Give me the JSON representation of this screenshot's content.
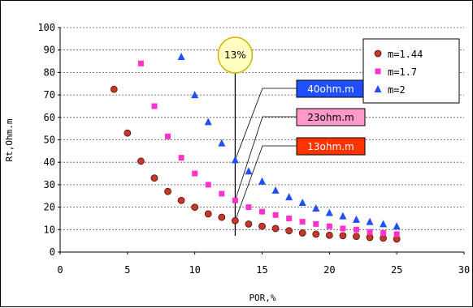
{
  "chart_data": {
    "type": "scatter",
    "xlabel": "POR,%",
    "ylabel": "Rt,Ohm.m",
    "xlim": [
      0,
      30
    ],
    "ylim": [
      0,
      100
    ],
    "xticks": [
      0,
      5,
      10,
      15,
      20,
      25,
      30
    ],
    "yticks": [
      0,
      10,
      20,
      30,
      40,
      50,
      60,
      70,
      80,
      90,
      100
    ],
    "grid": "horizontal dashed",
    "legend_position": "top-right",
    "series": [
      {
        "name": "m=1.44",
        "marker": "circle",
        "color": "#c0392b",
        "x": [
          4,
          5,
          6,
          7,
          8,
          9,
          10,
          11,
          12,
          13,
          14,
          15,
          16,
          17,
          18,
          19,
          20,
          21,
          22,
          23,
          24,
          25
        ],
        "y": [
          72.5,
          53,
          40.5,
          33,
          27,
          23,
          20,
          17,
          15.5,
          14,
          12.5,
          11.5,
          10.5,
          9.5,
          8.5,
          8,
          7.5,
          7.3,
          7,
          6.5,
          6.2,
          5.8
        ]
      },
      {
        "name": "m=1.7",
        "marker": "square",
        "color": "#ff33cc",
        "x": [
          6,
          7,
          8,
          9,
          10,
          11,
          12,
          13,
          14,
          15,
          16,
          17,
          18,
          19,
          20,
          21,
          22,
          23,
          24,
          25
        ],
        "y": [
          84,
          65,
          51.5,
          42,
          35,
          30,
          26,
          23,
          20,
          18,
          16.5,
          15,
          13.5,
          12.5,
          11.5,
          10.5,
          10,
          9,
          8.5,
          8
        ]
      },
      {
        "name": "m=2",
        "marker": "triangle",
        "color": "#1f4fff",
        "x": [
          9,
          10,
          11,
          12,
          13,
          14,
          15,
          16,
          17,
          18,
          19,
          20,
          21,
          22,
          23,
          24,
          25
        ],
        "y": [
          87,
          70,
          58,
          48.5,
          41,
          36,
          31.5,
          27.5,
          24.5,
          22,
          19.5,
          17.5,
          16,
          14.5,
          13.5,
          12.5,
          11.5
        ]
      }
    ],
    "annotations": {
      "cutoff": {
        "label": "13%",
        "x": 13
      },
      "boxes": [
        {
          "label": "40ohm.m",
          "color": "#1f4fff",
          "text_color": "#ffffff",
          "y": 41
        },
        {
          "label": "23ohm.m",
          "color": "#ff99cc",
          "text_color": "#000000",
          "y": 23
        },
        {
          "label": "13ohm.m",
          "color": "#ff3300",
          "text_color": "#ffffff",
          "y": 14
        }
      ]
    }
  }
}
